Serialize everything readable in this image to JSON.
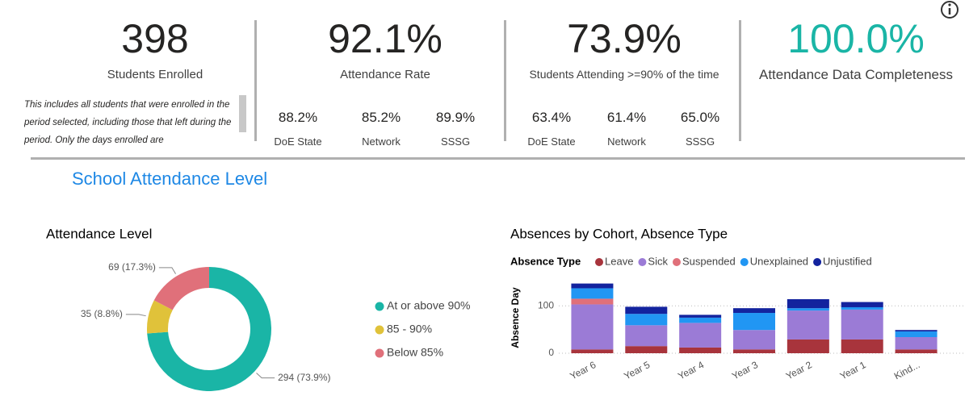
{
  "kpis": [
    {
      "value": "398",
      "label": "Students Enrolled",
      "note": "This includes all students that were enrolled in the period selected, including those that left during the period. Only the days enrolled are"
    },
    {
      "value": "92.1%",
      "label": "Attendance Rate",
      "compare": [
        {
          "value": "88.2%",
          "label": "DoE State"
        },
        {
          "value": "85.2%",
          "label": "Network"
        },
        {
          "value": "89.9%",
          "label": "SSSG"
        }
      ]
    },
    {
      "value": "73.9%",
      "label": "Students Attending >=90% of the time",
      "compare": [
        {
          "value": "63.4%",
          "label": "DoE State"
        },
        {
          "value": "61.4%",
          "label": "Network"
        },
        {
          "value": "65.0%",
          "label": "SSSG"
        }
      ]
    },
    {
      "value": "100.0%",
      "label": "Attendance Data Completeness"
    }
  ],
  "section_title": "School Attendance Level",
  "chart_data": [
    {
      "type": "donut",
      "title": "Attendance Level",
      "categories": [
        "At or above 90%",
        "85 - 90%",
        "Below 85%"
      ],
      "values": [
        294,
        35,
        69
      ],
      "value_labels": [
        "294 (73.9%)",
        "35 (8.8%)",
        "69 (17.3%)"
      ],
      "colors": [
        "#1ab5a6",
        "#e0c23a",
        "#e0707a"
      ]
    },
    {
      "type": "stacked_bar",
      "title": "Absences by Cohort, Absence Type",
      "legend_title": "Absence Type",
      "y_label": "Absence Day",
      "categories": [
        "Year 6",
        "Year 5",
        "Year 4",
        "Year 3",
        "Year 2",
        "Year 1",
        "Kind..."
      ],
      "series": [
        {
          "name": "Leave",
          "color": "#a8343c",
          "values": [
            8,
            15,
            12,
            8,
            29,
            29,
            8
          ]
        },
        {
          "name": "Sick",
          "color": "#9b7bd6",
          "values": [
            95,
            44,
            52,
            41,
            61,
            63,
            26
          ]
        },
        {
          "name": "Suspended",
          "color": "#e0707a",
          "values": [
            12,
            0,
            0,
            0,
            0,
            0,
            0
          ]
        },
        {
          "name": "Unexplained",
          "color": "#2196f3",
          "values": [
            22,
            24,
            11,
            36,
            5,
            5,
            12
          ]
        },
        {
          "name": "Unjustified",
          "color": "#13239e",
          "values": [
            10,
            15,
            6,
            10,
            19,
            11,
            3
          ]
        }
      ],
      "ylim": [
        0,
        165
      ],
      "yticks": [
        0,
        100
      ],
      "grid": true
    }
  ]
}
